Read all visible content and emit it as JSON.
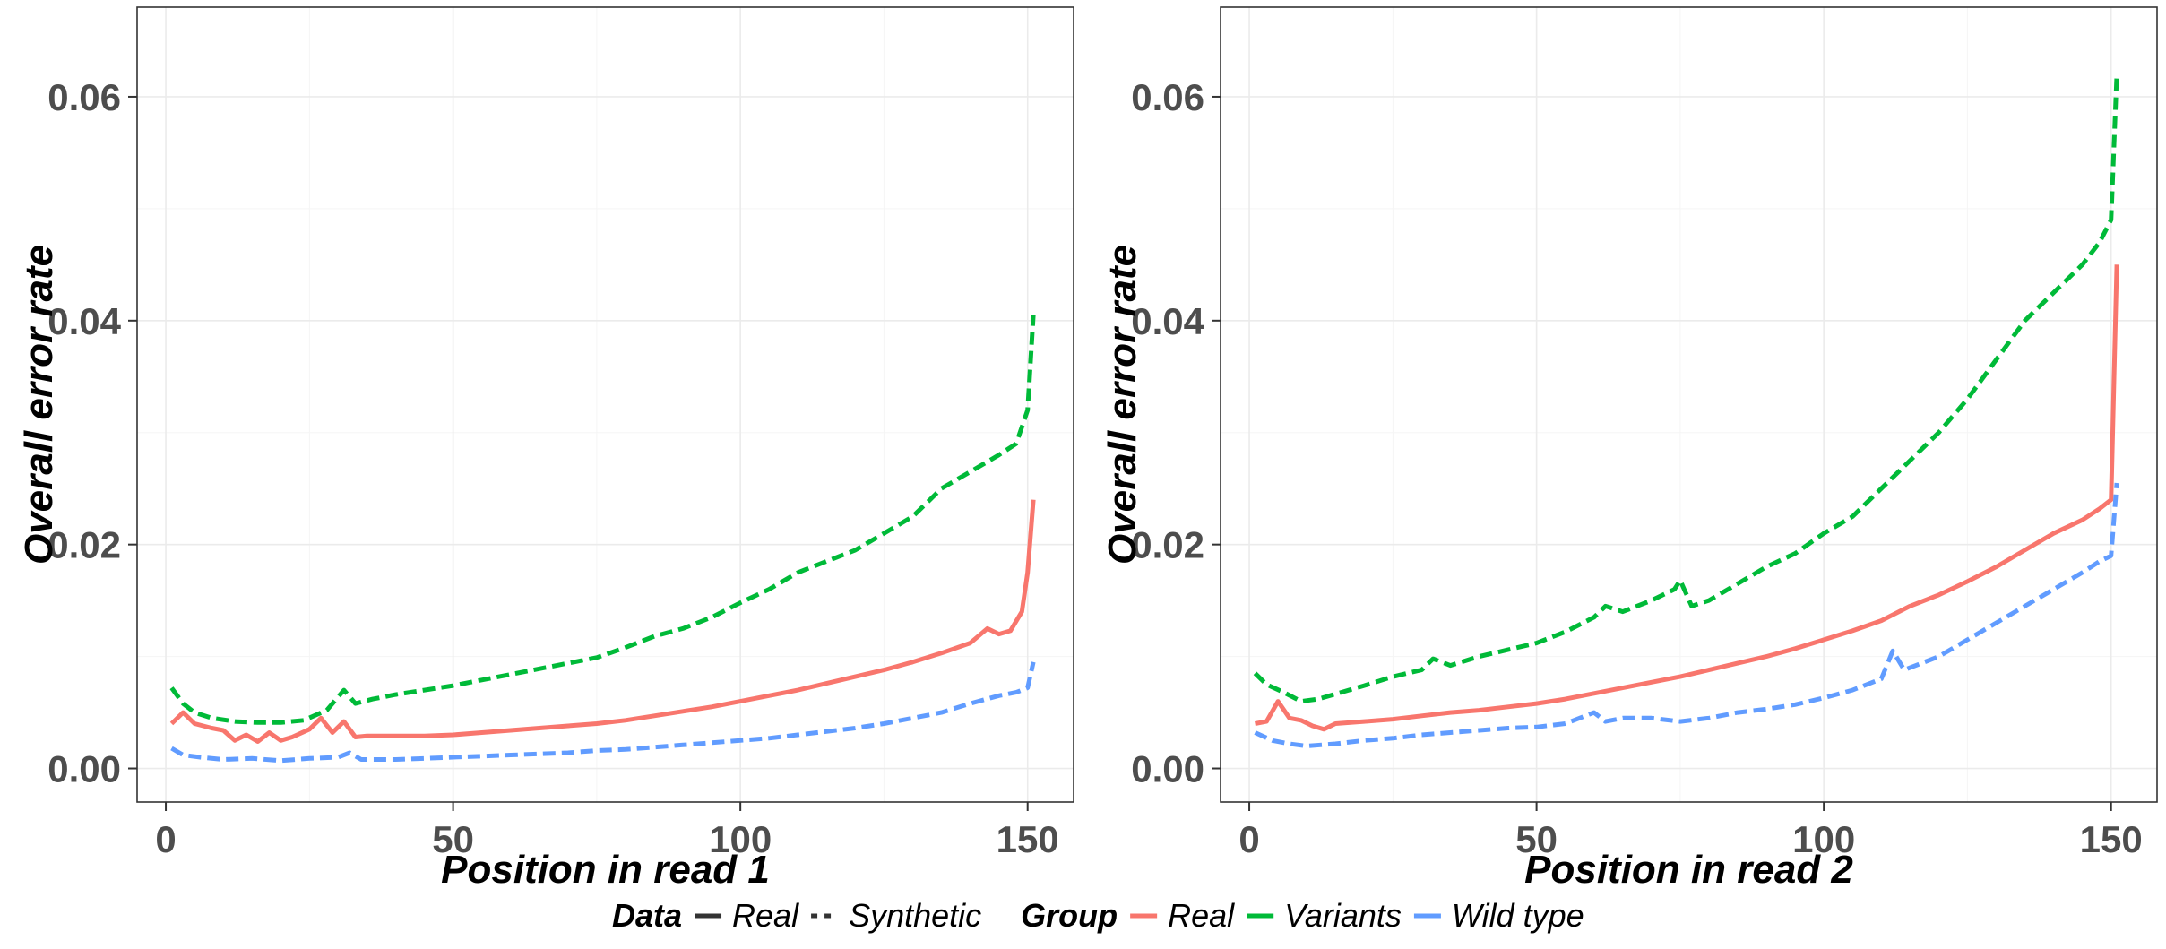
{
  "chart_data": [
    {
      "type": "line",
      "xlabel": "Position in read 1",
      "ylabel": "Overall error rate",
      "xlim": [
        -5,
        158
      ],
      "ylim": [
        -0.003,
        0.068
      ],
      "x_ticks": [
        0,
        50,
        100,
        150
      ],
      "x_tick_labels": [
        "0",
        "50",
        "100",
        "150"
      ],
      "y_ticks": [
        0.0,
        0.02,
        0.04,
        0.06
      ],
      "y_tick_labels": [
        "0.00",
        "0.02",
        "0.04",
        "0.06"
      ],
      "grid": true,
      "series": [
        {
          "name": "Real",
          "group": "Real",
          "data_type": "Real",
          "color": "#F8766D",
          "linetype": "solid",
          "points": [
            [
              1,
              0.004
            ],
            [
              3,
              0.005
            ],
            [
              5,
              0.004
            ],
            [
              8,
              0.0036
            ],
            [
              10,
              0.0034
            ],
            [
              12,
              0.0025
            ],
            [
              14,
              0.003
            ],
            [
              16,
              0.0024
            ],
            [
              18,
              0.0032
            ],
            [
              20,
              0.0025
            ],
            [
              22,
              0.0028
            ],
            [
              25,
              0.0035
            ],
            [
              27,
              0.0045
            ],
            [
              29,
              0.0032
            ],
            [
              31,
              0.0042
            ],
            [
              33,
              0.0028
            ],
            [
              35,
              0.0029
            ],
            [
              40,
              0.0029
            ],
            [
              45,
              0.0029
            ],
            [
              50,
              0.003
            ],
            [
              55,
              0.0032
            ],
            [
              60,
              0.0034
            ],
            [
              65,
              0.0036
            ],
            [
              70,
              0.0038
            ],
            [
              75,
              0.004
            ],
            [
              80,
              0.0043
            ],
            [
              85,
              0.0047
            ],
            [
              90,
              0.0051
            ],
            [
              95,
              0.0055
            ],
            [
              100,
              0.006
            ],
            [
              105,
              0.0065
            ],
            [
              110,
              0.007
            ],
            [
              115,
              0.0076
            ],
            [
              120,
              0.0082
            ],
            [
              125,
              0.0088
            ],
            [
              130,
              0.0095
            ],
            [
              135,
              0.0103
            ],
            [
              140,
              0.0112
            ],
            [
              143,
              0.0125
            ],
            [
              145,
              0.012
            ],
            [
              147,
              0.0123
            ],
            [
              149,
              0.014
            ],
            [
              150,
              0.0175
            ],
            [
              151,
              0.024
            ]
          ]
        },
        {
          "name": "Variants",
          "group": "Variants",
          "data_type": "Synthetic",
          "color": "#00BA38",
          "linetype": "dashed",
          "points": [
            [
              1,
              0.0072
            ],
            [
              3,
              0.0058
            ],
            [
              5,
              0.005
            ],
            [
              8,
              0.0045
            ],
            [
              12,
              0.0042
            ],
            [
              16,
              0.0041
            ],
            [
              20,
              0.0041
            ],
            [
              24,
              0.0043
            ],
            [
              28,
              0.0052
            ],
            [
              31,
              0.007
            ],
            [
              33,
              0.0058
            ],
            [
              36,
              0.0062
            ],
            [
              40,
              0.0066
            ],
            [
              45,
              0.007
            ],
            [
              50,
              0.0074
            ],
            [
              55,
              0.0079
            ],
            [
              60,
              0.0084
            ],
            [
              65,
              0.0089
            ],
            [
              70,
              0.0094
            ],
            [
              75,
              0.0099
            ],
            [
              80,
              0.0108
            ],
            [
              85,
              0.0118
            ],
            [
              90,
              0.0125
            ],
            [
              95,
              0.0135
            ],
            [
              100,
              0.0148
            ],
            [
              105,
              0.016
            ],
            [
              110,
              0.0175
            ],
            [
              115,
              0.0185
            ],
            [
              120,
              0.0195
            ],
            [
              125,
              0.021
            ],
            [
              130,
              0.0225
            ],
            [
              135,
              0.025
            ],
            [
              140,
              0.0265
            ],
            [
              145,
              0.028
            ],
            [
              148,
              0.029
            ],
            [
              150,
              0.032
            ],
            [
              151,
              0.0405
            ]
          ]
        },
        {
          "name": "Wild type",
          "group": "Wild type",
          "data_type": "Synthetic",
          "color": "#619CFF",
          "linetype": "dashed",
          "points": [
            [
              1,
              0.0018
            ],
            [
              3,
              0.0012
            ],
            [
              6,
              0.001
            ],
            [
              10,
              0.0008
            ],
            [
              15,
              0.0009
            ],
            [
              20,
              0.0007
            ],
            [
              25,
              0.0009
            ],
            [
              30,
              0.001
            ],
            [
              32,
              0.0014
            ],
            [
              34,
              0.0008
            ],
            [
              40,
              0.0008
            ],
            [
              45,
              0.0009
            ],
            [
              50,
              0.001
            ],
            [
              55,
              0.0011
            ],
            [
              60,
              0.0012
            ],
            [
              65,
              0.0013
            ],
            [
              70,
              0.0014
            ],
            [
              75,
              0.0016
            ],
            [
              80,
              0.0017
            ],
            [
              85,
              0.0019
            ],
            [
              90,
              0.0021
            ],
            [
              95,
              0.0023
            ],
            [
              100,
              0.0025
            ],
            [
              105,
              0.0027
            ],
            [
              110,
              0.003
            ],
            [
              115,
              0.0033
            ],
            [
              120,
              0.0036
            ],
            [
              125,
              0.004
            ],
            [
              130,
              0.0045
            ],
            [
              135,
              0.005
            ],
            [
              140,
              0.0058
            ],
            [
              145,
              0.0065
            ],
            [
              148,
              0.0068
            ],
            [
              150,
              0.0072
            ],
            [
              151,
              0.0095
            ]
          ]
        }
      ]
    },
    {
      "type": "line",
      "xlabel": "Position in read 2",
      "ylabel": "Overall error rate",
      "xlim": [
        -5,
        158
      ],
      "ylim": [
        -0.003,
        0.068
      ],
      "x_ticks": [
        0,
        50,
        100,
        150
      ],
      "x_tick_labels": [
        "0",
        "50",
        "100",
        "150"
      ],
      "y_ticks": [
        0.0,
        0.02,
        0.04,
        0.06
      ],
      "y_tick_labels": [
        "0.00",
        "0.02",
        "0.04",
        "0.06"
      ],
      "grid": true,
      "series": [
        {
          "name": "Real",
          "group": "Real",
          "data_type": "Real",
          "color": "#F8766D",
          "linetype": "solid",
          "points": [
            [
              1,
              0.004
            ],
            [
              3,
              0.0042
            ],
            [
              5,
              0.006
            ],
            [
              7,
              0.0045
            ],
            [
              9,
              0.0043
            ],
            [
              11,
              0.0038
            ],
            [
              13,
              0.0035
            ],
            [
              15,
              0.004
            ],
            [
              20,
              0.0042
            ],
            [
              25,
              0.0044
            ],
            [
              30,
              0.0047
            ],
            [
              35,
              0.005
            ],
            [
              40,
              0.0052
            ],
            [
              45,
              0.0055
            ],
            [
              50,
              0.0058
            ],
            [
              55,
              0.0062
            ],
            [
              60,
              0.0067
            ],
            [
              65,
              0.0072
            ],
            [
              70,
              0.0077
            ],
            [
              75,
              0.0082
            ],
            [
              80,
              0.0088
            ],
            [
              85,
              0.0094
            ],
            [
              90,
              0.01
            ],
            [
              95,
              0.0107
            ],
            [
              100,
              0.0115
            ],
            [
              105,
              0.0123
            ],
            [
              110,
              0.0132
            ],
            [
              115,
              0.0145
            ],
            [
              120,
              0.0155
            ],
            [
              125,
              0.0167
            ],
            [
              130,
              0.018
            ],
            [
              135,
              0.0195
            ],
            [
              140,
              0.021
            ],
            [
              145,
              0.0222
            ],
            [
              148,
              0.0232
            ],
            [
              150,
              0.024
            ],
            [
              151,
              0.045
            ]
          ]
        },
        {
          "name": "Variants",
          "group": "Variants",
          "data_type": "Synthetic",
          "color": "#00BA38",
          "linetype": "dashed",
          "points": [
            [
              1,
              0.0085
            ],
            [
              3,
              0.0075
            ],
            [
              6,
              0.0068
            ],
            [
              9,
              0.006
            ],
            [
              12,
              0.0062
            ],
            [
              16,
              0.0068
            ],
            [
              20,
              0.0074
            ],
            [
              25,
              0.0082
            ],
            [
              30,
              0.0088
            ],
            [
              32,
              0.0098
            ],
            [
              35,
              0.0092
            ],
            [
              40,
              0.01
            ],
            [
              45,
              0.0106
            ],
            [
              50,
              0.0112
            ],
            [
              55,
              0.0122
            ],
            [
              60,
              0.0135
            ],
            [
              62,
              0.0145
            ],
            [
              65,
              0.014
            ],
            [
              70,
              0.015
            ],
            [
              74,
              0.016
            ],
            [
              75,
              0.0168
            ],
            [
              77,
              0.0145
            ],
            [
              80,
              0.015
            ],
            [
              85,
              0.0165
            ],
            [
              90,
              0.018
            ],
            [
              95,
              0.0192
            ],
            [
              100,
              0.021
            ],
            [
              105,
              0.0225
            ],
            [
              110,
              0.025
            ],
            [
              115,
              0.0275
            ],
            [
              120,
              0.03
            ],
            [
              125,
              0.033
            ],
            [
              130,
              0.0365
            ],
            [
              135,
              0.04
            ],
            [
              140,
              0.0425
            ],
            [
              145,
              0.045
            ],
            [
              148,
              0.047
            ],
            [
              150,
              0.049
            ],
            [
              151,
              0.062
            ]
          ]
        },
        {
          "name": "Wild type",
          "group": "Wild type",
          "data_type": "Synthetic",
          "color": "#619CFF",
          "linetype": "dashed",
          "points": [
            [
              1,
              0.0032
            ],
            [
              4,
              0.0025
            ],
            [
              7,
              0.0022
            ],
            [
              10,
              0.002
            ],
            [
              15,
              0.0022
            ],
            [
              20,
              0.0025
            ],
            [
              25,
              0.0027
            ],
            [
              30,
              0.003
            ],
            [
              35,
              0.0032
            ],
            [
              40,
              0.0034
            ],
            [
              45,
              0.0036
            ],
            [
              50,
              0.0037
            ],
            [
              55,
              0.004
            ],
            [
              60,
              0.005
            ],
            [
              62,
              0.0042
            ],
            [
              65,
              0.0045
            ],
            [
              70,
              0.0045
            ],
            [
              75,
              0.0042
            ],
            [
              80,
              0.0045
            ],
            [
              85,
              0.005
            ],
            [
              90,
              0.0053
            ],
            [
              95,
              0.0057
            ],
            [
              100,
              0.0063
            ],
            [
              105,
              0.007
            ],
            [
              110,
              0.008
            ],
            [
              112,
              0.0105
            ],
            [
              114,
              0.0088
            ],
            [
              120,
              0.01
            ],
            [
              125,
              0.0115
            ],
            [
              130,
              0.013
            ],
            [
              135,
              0.0145
            ],
            [
              140,
              0.016
            ],
            [
              145,
              0.0175
            ],
            [
              148,
              0.0185
            ],
            [
              150,
              0.019
            ],
            [
              151,
              0.0255
            ]
          ]
        }
      ]
    }
  ],
  "legend": {
    "placement": "bottom",
    "data_title": "Data",
    "data_items": [
      {
        "label": "Real",
        "linetype": "solid",
        "color": "#333333"
      },
      {
        "label": "Synthetic",
        "linetype": "dashed",
        "color": "#333333"
      }
    ],
    "group_title": "Group",
    "group_items": [
      {
        "label": "Real",
        "color": "#F8766D"
      },
      {
        "label": "Variants",
        "color": "#00BA38"
      },
      {
        "label": "Wild type",
        "color": "#619CFF"
      }
    ]
  }
}
